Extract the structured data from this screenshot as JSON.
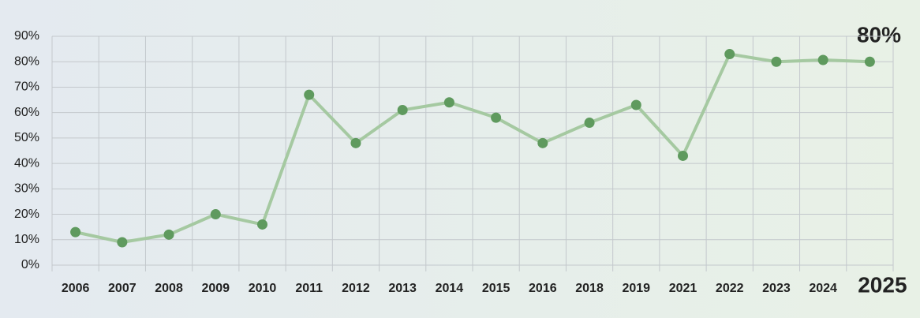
{
  "chart_data": {
    "type": "line",
    "categories": [
      "2006",
      "2007",
      "2008",
      "2009",
      "2010",
      "2011",
      "2012",
      "2013",
      "2014",
      "2015",
      "2016",
      "2018",
      "2019",
      "2021",
      "2022",
      "2023",
      "2024",
      "2025"
    ],
    "series": [
      {
        "color": "#5f9a5e",
        "values": [
          13,
          9,
          12,
          20,
          16,
          67,
          48,
          61,
          64,
          58,
          48,
          56,
          63,
          43,
          83,
          80,
          80.7,
          80
        ]
      }
    ],
    "annotation": "80%",
    "ylim": [
      0,
      90
    ],
    "yticks": [
      {
        "value": 0,
        "label": "0%"
      },
      {
        "value": 10,
        "label": "10%"
      },
      {
        "value": 20,
        "label": "20%"
      },
      {
        "value": 30,
        "label": "30%"
      },
      {
        "value": 40,
        "label": "40%"
      },
      {
        "value": 50,
        "label": "50%"
      },
      {
        "value": 60,
        "label": "60%"
      },
      {
        "value": 70,
        "label": "70%"
      },
      {
        "value": 80,
        "label": "80%"
      },
      {
        "value": 90,
        "label": "90%"
      }
    ],
    "grid": true
  }
}
